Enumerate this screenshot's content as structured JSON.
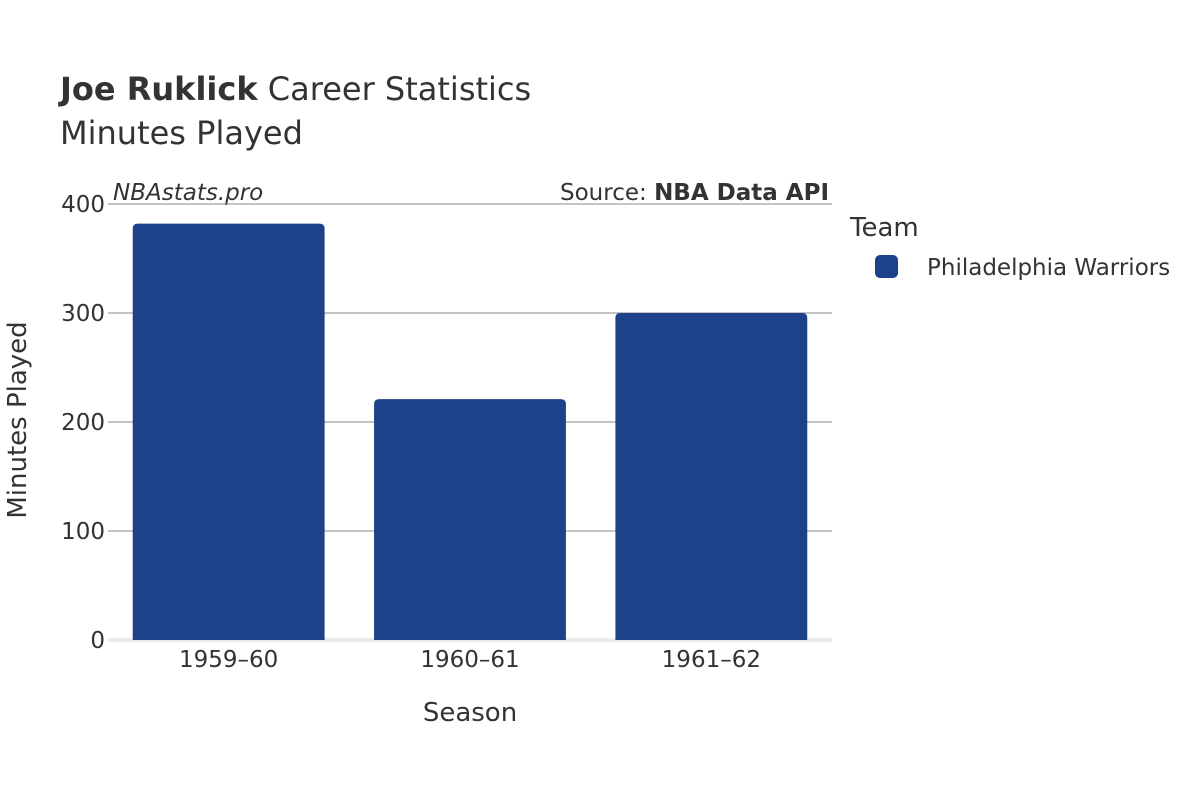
{
  "chart_data": {
    "type": "bar",
    "title_bold": "Joe Ruklick",
    "title_rest": " Career Statistics",
    "subtitle": "Minutes Played",
    "watermark": "NBAstats.pro",
    "source_prefix": "Source: ",
    "source_name": "NBA Data API",
    "xlabel": "Season",
    "ylabel": "Minutes Played",
    "categories": [
      "1959–60",
      "1960–61",
      "1961–62"
    ],
    "series": [
      {
        "name": "Philadelphia Warriors",
        "color": "#1d428a",
        "values": [
          382,
          221,
          300
        ]
      }
    ],
    "ylim": [
      0,
      400
    ],
    "yticks": [
      0,
      100,
      200,
      300,
      400
    ],
    "grid": true,
    "legend": {
      "title": "Team",
      "placement": "right"
    }
  }
}
